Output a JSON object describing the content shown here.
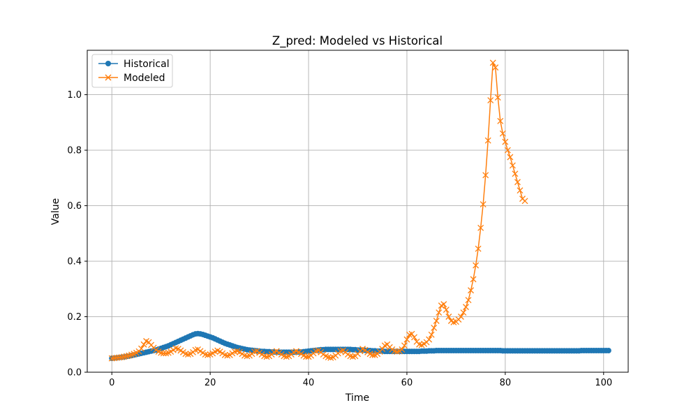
{
  "chart_data": {
    "type": "line",
    "title": "Z_pred: Modeled vs Historical",
    "xlabel": "Time",
    "ylabel": "Value",
    "xlim": [
      -5,
      105
    ],
    "ylim": [
      0.0,
      1.16
    ],
    "xticks": [
      0,
      20,
      40,
      60,
      80,
      100
    ],
    "yticks": [
      0.0,
      0.2,
      0.4,
      0.6,
      0.8,
      1.0
    ],
    "grid": true,
    "legend_position": "top-left",
    "series": [
      {
        "name": "Historical",
        "color": "#1f77b4",
        "marker": "circle",
        "x_start": 0,
        "x_step": 0.5,
        "values": [
          0.05,
          0.051,
          0.052,
          0.053,
          0.054,
          0.055,
          0.057,
          0.058,
          0.06,
          0.062,
          0.064,
          0.066,
          0.068,
          0.07,
          0.072,
          0.074,
          0.076,
          0.078,
          0.08,
          0.083,
          0.086,
          0.089,
          0.092,
          0.095,
          0.099,
          0.103,
          0.107,
          0.111,
          0.115,
          0.119,
          0.123,
          0.127,
          0.131,
          0.135,
          0.138,
          0.139,
          0.138,
          0.136,
          0.133,
          0.13,
          0.127,
          0.124,
          0.12,
          0.116,
          0.112,
          0.108,
          0.104,
          0.101,
          0.098,
          0.095,
          0.092,
          0.089,
          0.087,
          0.085,
          0.083,
          0.081,
          0.08,
          0.079,
          0.078,
          0.077,
          0.076,
          0.075,
          0.075,
          0.074,
          0.074,
          0.073,
          0.073,
          0.072,
          0.072,
          0.072,
          0.072,
          0.072,
          0.072,
          0.072,
          0.072,
          0.072,
          0.073,
          0.073,
          0.074,
          0.075,
          0.076,
          0.077,
          0.078,
          0.079,
          0.08,
          0.081,
          0.081,
          0.082,
          0.082,
          0.082,
          0.082,
          0.082,
          0.082,
          0.082,
          0.082,
          0.082,
          0.082,
          0.082,
          0.081,
          0.081,
          0.08,
          0.08,
          0.079,
          0.079,
          0.078,
          0.078,
          0.077,
          0.077,
          0.076,
          0.076,
          0.076,
          0.075,
          0.075,
          0.075,
          0.075,
          0.075,
          0.075,
          0.075,
          0.075,
          0.075,
          0.075,
          0.075,
          0.075,
          0.075,
          0.075,
          0.075,
          0.076,
          0.076,
          0.076,
          0.077,
          0.077,
          0.077,
          0.078,
          0.078,
          0.078,
          0.078,
          0.078,
          0.078,
          0.078,
          0.078,
          0.078,
          0.078,
          0.078,
          0.078,
          0.078,
          0.078,
          0.078,
          0.078,
          0.078,
          0.078,
          0.078,
          0.078,
          0.078,
          0.078,
          0.078,
          0.078,
          0.078,
          0.078,
          0.078,
          0.077,
          0.077,
          0.077,
          0.077,
          0.077,
          0.077,
          0.077,
          0.077,
          0.077,
          0.077,
          0.077,
          0.077,
          0.077,
          0.077,
          0.077,
          0.077,
          0.077,
          0.077,
          0.077,
          0.077,
          0.077,
          0.077,
          0.077,
          0.077,
          0.077,
          0.077,
          0.077,
          0.077,
          0.077,
          0.077,
          0.077,
          0.077,
          0.078,
          0.078,
          0.078,
          0.078,
          0.078,
          0.078,
          0.078,
          0.078,
          0.078,
          0.078,
          0.078,
          0.078
        ]
      },
      {
        "name": "Modeled",
        "color": "#ff7f0e",
        "marker": "x",
        "x_start": 0,
        "x_step": 0.5,
        "values": [
          0.05,
          0.051,
          0.052,
          0.053,
          0.054,
          0.056,
          0.058,
          0.06,
          0.063,
          0.066,
          0.07,
          0.075,
          0.085,
          0.1,
          0.112,
          0.108,
          0.098,
          0.088,
          0.08,
          0.074,
          0.07,
          0.068,
          0.068,
          0.07,
          0.074,
          0.08,
          0.086,
          0.084,
          0.078,
          0.072,
          0.066,
          0.064,
          0.066,
          0.072,
          0.08,
          0.082,
          0.076,
          0.07,
          0.064,
          0.062,
          0.064,
          0.068,
          0.074,
          0.078,
          0.074,
          0.068,
          0.062,
          0.06,
          0.062,
          0.068,
          0.074,
          0.076,
          0.072,
          0.066,
          0.06,
          0.058,
          0.06,
          0.066,
          0.074,
          0.076,
          0.07,
          0.064,
          0.058,
          0.056,
          0.058,
          0.064,
          0.072,
          0.076,
          0.07,
          0.064,
          0.058,
          0.056,
          0.058,
          0.064,
          0.072,
          0.076,
          0.072,
          0.066,
          0.06,
          0.056,
          0.056,
          0.06,
          0.068,
          0.076,
          0.078,
          0.072,
          0.064,
          0.058,
          0.054,
          0.052,
          0.054,
          0.06,
          0.068,
          0.076,
          0.078,
          0.072,
          0.064,
          0.058,
          0.056,
          0.058,
          0.066,
          0.076,
          0.084,
          0.08,
          0.072,
          0.066,
          0.062,
          0.062,
          0.066,
          0.074,
          0.084,
          0.096,
          0.1,
          0.09,
          0.082,
          0.076,
          0.074,
          0.076,
          0.082,
          0.096,
          0.118,
          0.135,
          0.138,
          0.126,
          0.11,
          0.1,
          0.098,
          0.102,
          0.108,
          0.118,
          0.135,
          0.16,
          0.185,
          0.215,
          0.24,
          0.245,
          0.225,
          0.2,
          0.185,
          0.18,
          0.182,
          0.19,
          0.2,
          0.215,
          0.235,
          0.26,
          0.295,
          0.335,
          0.385,
          0.445,
          0.52,
          0.605,
          0.71,
          0.835,
          0.98,
          1.115,
          1.098,
          0.99,
          0.905,
          0.86,
          0.83,
          0.8,
          0.775,
          0.745,
          0.715,
          0.685,
          0.655,
          0.625,
          0.617
        ]
      }
    ]
  }
}
